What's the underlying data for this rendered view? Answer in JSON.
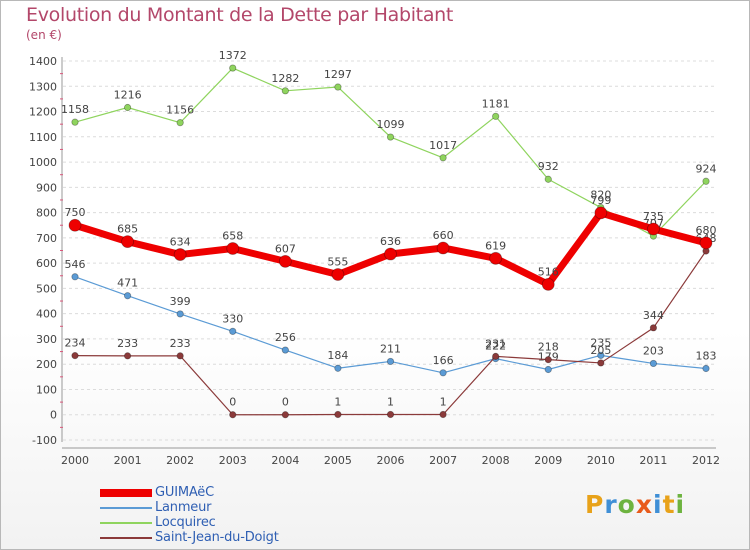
{
  "header": {
    "title": "Evolution du Montant de la Dette par Habitant",
    "subtitle": "(en €)"
  },
  "logo": {
    "text": "Proxiti",
    "letter_colors": [
      "#e8a21a",
      "#3f8fd6",
      "#6db33f",
      "#e85a1a",
      "#3f8fd6",
      "#e8a21a",
      "#6db33f"
    ]
  },
  "colors": {
    "title": "#b3476a",
    "tick_label": "#444444",
    "legend_text": "#2f5fb3",
    "grid": "#dcdcdc"
  },
  "chart_data": {
    "type": "line",
    "title": "Evolution du Montant de la Dette par Habitant",
    "subtitle": "(en €)",
    "xlabel": "",
    "ylabel": "",
    "ylim": [
      -100,
      1400
    ],
    "yticks": [
      -100,
      0,
      100,
      200,
      300,
      400,
      500,
      600,
      700,
      800,
      900,
      1000,
      1100,
      1200,
      1300,
      1400
    ],
    "grid": "horizontal dashed",
    "legend_position": "bottom-left",
    "categories": [
      "2000",
      "2001",
      "2002",
      "2003",
      "2004",
      "2005",
      "2006",
      "2007",
      "2008",
      "2009",
      "2010",
      "2011",
      "2012"
    ],
    "series": [
      {
        "name": "Locquirec",
        "color": "#8fd45e",
        "line_width": 1.2,
        "marker": 3.2,
        "values": [
          1158,
          1216,
          1156,
          1372,
          1282,
          1297,
          1099,
          1017,
          1181,
          932,
          820,
          707,
          924
        ],
        "labels": [
          "1158",
          "1216",
          "1156",
          "1372",
          "1282",
          "1297",
          "1099",
          "1017",
          "1181",
          "932",
          "820",
          "707",
          "924"
        ]
      },
      {
        "name": "Lanmeur",
        "color": "#5b9bd5",
        "line_width": 1.2,
        "marker": 3.2,
        "values": [
          546,
          471,
          399,
          330,
          256,
          184,
          211,
          166,
          222,
          179,
          235,
          203,
          183
        ],
        "labels": [
          "546",
          "471",
          "399",
          "330",
          "256",
          "184",
          "211",
          "166",
          "222",
          "179",
          "235",
          "203",
          "183"
        ]
      },
      {
        "name": "Saint-Jean-du-Doigt",
        "color": "#8b3a3a",
        "line_width": 1.2,
        "marker": 3.2,
        "values": [
          234,
          233,
          233,
          0,
          0,
          1,
          1,
          1,
          231,
          218,
          205,
          344,
          648
        ],
        "labels": [
          "234",
          "233",
          "233",
          "0",
          "0",
          "1",
          "1",
          "1",
          "231",
          "218",
          "205",
          "344",
          "648"
        ]
      },
      {
        "name": "GUIMAëC",
        "color": "#ee0000",
        "line_width": 7,
        "marker": 6,
        "values": [
          750,
          685,
          634,
          658,
          607,
          555,
          636,
          660,
          619,
          516,
          799,
          735,
          680
        ],
        "labels": [
          "750",
          "685",
          "634",
          "658",
          "607",
          "555",
          "636",
          "660",
          "619",
          "516",
          "799",
          "735",
          "680"
        ]
      }
    ]
  },
  "legend": {
    "items": [
      {
        "label": "GUIMAëC",
        "color": "#ee0000",
        "thick": true
      },
      {
        "label": "Lanmeur",
        "color": "#5b9bd5",
        "thick": false
      },
      {
        "label": "Locquirec",
        "color": "#8fd45e",
        "thick": false
      },
      {
        "label": "Saint-Jean-du-Doigt",
        "color": "#8b3a3a",
        "thick": false
      }
    ]
  }
}
